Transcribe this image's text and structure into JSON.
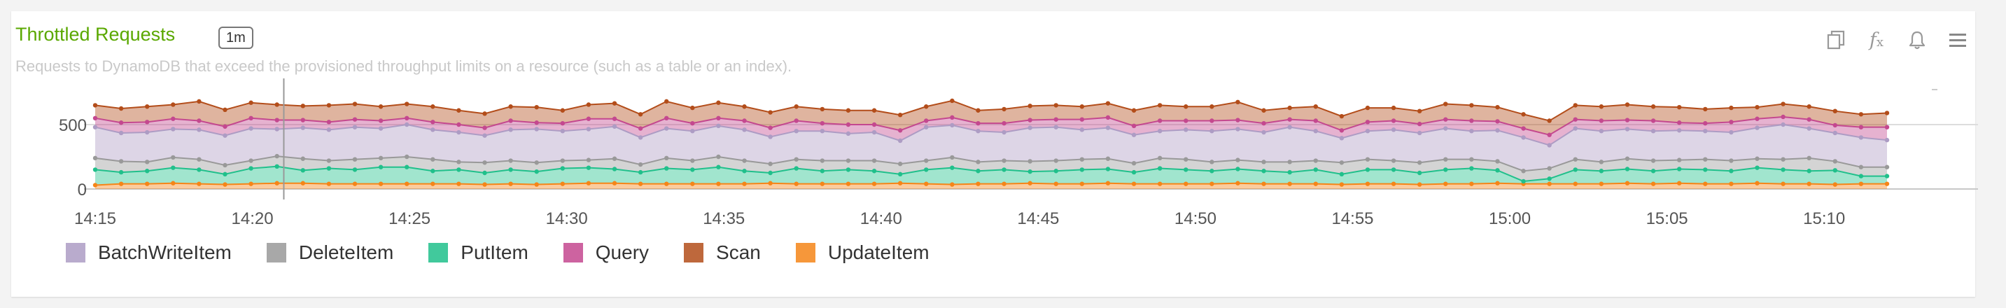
{
  "panel": {
    "title": "Throttled Requests",
    "badge": "1m",
    "subtitle": "Requests to DynamoDB that exceed the provisioned throughput limits on a resource (such as a table or an index).",
    "icons": [
      "copy-icon",
      "function-icon",
      "bell-icon",
      "menu-icon"
    ],
    "fx_label": "f(x)"
  },
  "chart_data": {
    "type": "area",
    "stacked": true,
    "y_ticks": [
      "0",
      "500"
    ],
    "ylim": [
      0,
      700
    ],
    "x_ticks": [
      "14:15",
      "14:20",
      "14:25",
      "14:30",
      "14:35",
      "14:40",
      "14:45",
      "14:50",
      "14:55",
      "15:00",
      "15:05",
      "15:10"
    ],
    "x_start": "14:15",
    "x_end": "15:12",
    "cursor_time": "14:21",
    "grid": true,
    "legend_position": "bottom-left",
    "series": [
      {
        "name": "UpdateItem",
        "color": "#f58518",
        "values": [
          30,
          40,
          40,
          45,
          40,
          35,
          40,
          45,
          45,
          40,
          40,
          40,
          40,
          40,
          40,
          35,
          40,
          35,
          40,
          45,
          45,
          40,
          40,
          40,
          40,
          40,
          45,
          40,
          40,
          40,
          40,
          45,
          40,
          35,
          40,
          40,
          45,
          40,
          40,
          45,
          40,
          40,
          40,
          40,
          45,
          40,
          40,
          40,
          35,
          40,
          40,
          35,
          40,
          40,
          45,
          40,
          40,
          40,
          40,
          45,
          40,
          45,
          40,
          40,
          45,
          40,
          40,
          35,
          40,
          40
        ]
      },
      {
        "name": "PutItem",
        "color": "#20c08b",
        "values": [
          120,
          90,
          100,
          120,
          110,
          80,
          120,
          130,
          100,
          120,
          110,
          130,
          130,
          100,
          110,
          90,
          110,
          100,
          120,
          120,
          110,
          90,
          120,
          110,
          130,
          100,
          80,
          120,
          100,
          110,
          100,
          70,
          110,
          130,
          100,
          110,
          90,
          100,
          110,
          110,
          90,
          120,
          110,
          100,
          110,
          100,
          90,
          110,
          80,
          110,
          110,
          90,
          110,
          120,
          100,
          20,
          40,
          110,
          100,
          110,
          100,
          110,
          110,
          100,
          120,
          110,
          100,
          110,
          60,
          60
        ]
      },
      {
        "name": "DeleteItem",
        "color": "#999999",
        "values": [
          90,
          85,
          70,
          80,
          80,
          70,
          60,
          80,
          90,
          60,
          80,
          70,
          80,
          90,
          60,
          80,
          70,
          70,
          60,
          60,
          80,
          60,
          80,
          70,
          80,
          80,
          70,
          70,
          80,
          70,
          80,
          80,
          70,
          80,
          70,
          70,
          80,
          80,
          80,
          80,
          70,
          80,
          80,
          70,
          70,
          70,
          80,
          70,
          90,
          80,
          70,
          80,
          80,
          70,
          70,
          80,
          80,
          80,
          70,
          80,
          80,
          70,
          80,
          80,
          70,
          80,
          100,
          70,
          70,
          70
        ]
      },
      {
        "name": "BatchWriteItem",
        "color": "#ad9cc4",
        "values": [
          240,
          220,
          230,
          220,
          230,
          230,
          250,
          210,
          240,
          240,
          250,
          230,
          250,
          230,
          230,
          210,
          240,
          260,
          230,
          240,
          250,
          210,
          230,
          230,
          240,
          240,
          210,
          220,
          230,
          210,
          220,
          180,
          260,
          250,
          240,
          220,
          260,
          260,
          230,
          240,
          220,
          210,
          230,
          240,
          240,
          230,
          270,
          230,
          190,
          220,
          240,
          230,
          240,
          220,
          240,
          260,
          180,
          240,
          240,
          230,
          230,
          230,
          220,
          220,
          240,
          270,
          230,
          220,
          230,
          210
        ]
      },
      {
        "name": "Query",
        "color": "#c4488f",
        "values": [
          70,
          80,
          80,
          80,
          70,
          70,
          80,
          70,
          60,
          60,
          60,
          60,
          50,
          60,
          60,
          60,
          70,
          50,
          60,
          80,
          60,
          70,
          80,
          60,
          60,
          70,
          70,
          80,
          60,
          70,
          60,
          80,
          50,
          60,
          60,
          70,
          60,
          60,
          80,
          80,
          70,
          80,
          70,
          80,
          70,
          70,
          60,
          80,
          60,
          70,
          70,
          70,
          70,
          80,
          70,
          70,
          80,
          70,
          80,
          70,
          80,
          60,
          60,
          80,
          70,
          60,
          70,
          60,
          80,
          100
        ]
      },
      {
        "name": "Scan",
        "color": "#b34d1a",
        "values": [
          100,
          110,
          120,
          110,
          150,
          130,
          120,
          120,
          110,
          130,
          120,
          110,
          110,
          120,
          110,
          110,
          110,
          120,
          100,
          110,
          120,
          110,
          130,
          120,
          120,
          110,
          120,
          110,
          110,
          110,
          110,
          120,
          110,
          130,
          100,
          110,
          110,
          110,
          100,
          110,
          120,
          120,
          110,
          110,
          140,
          100,
          90,
          110,
          110,
          110,
          100,
          100,
          120,
          120,
          110,
          110,
          110,
          110,
          110,
          120,
          110,
          120,
          110,
          110,
          90,
          100,
          100,
          110,
          100,
          110
        ]
      }
    ]
  },
  "colors": {
    "title": "#5aa800",
    "grid": "#dddddd",
    "axis_text": "#777777"
  }
}
